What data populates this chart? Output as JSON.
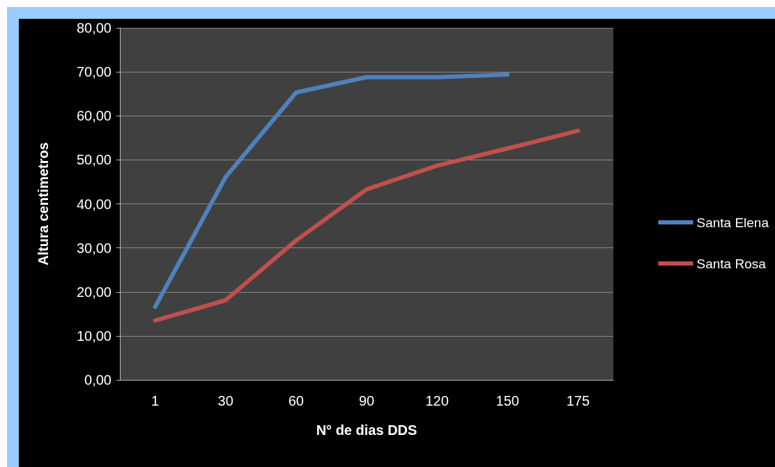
{
  "chart_data": {
    "type": "line",
    "xlabel": "N° de dias DDS",
    "ylabel": "Altura centimetros",
    "categories": [
      "1",
      "30",
      "60",
      "90",
      "120",
      "150",
      "175"
    ],
    "series": [
      {
        "name": "Santa Elena",
        "color": "#4f81bd",
        "values": [
          16.6,
          46.1,
          65.3,
          68.8,
          68.8,
          69.4,
          null
        ]
      },
      {
        "name": "Santa Rosa",
        "color": "#c0504d",
        "values": [
          13.5,
          18.1,
          31.7,
          43.3,
          48.7,
          52.6,
          56.6
        ]
      }
    ],
    "ylim": [
      0,
      80
    ],
    "yticks": [
      {
        "value": 0,
        "label": "0,00"
      },
      {
        "value": 10,
        "label": "10,00"
      },
      {
        "value": 20,
        "label": "20,00"
      },
      {
        "value": 30,
        "label": "30,00"
      },
      {
        "value": 40,
        "label": "40,00"
      },
      {
        "value": 50,
        "label": "50,00"
      },
      {
        "value": 60,
        "label": "60,00"
      },
      {
        "value": 70,
        "label": "70,00"
      },
      {
        "value": 80,
        "label": "80,00"
      }
    ],
    "grid": "y",
    "legend": "right",
    "marker": "none",
    "line_style": "solid"
  }
}
